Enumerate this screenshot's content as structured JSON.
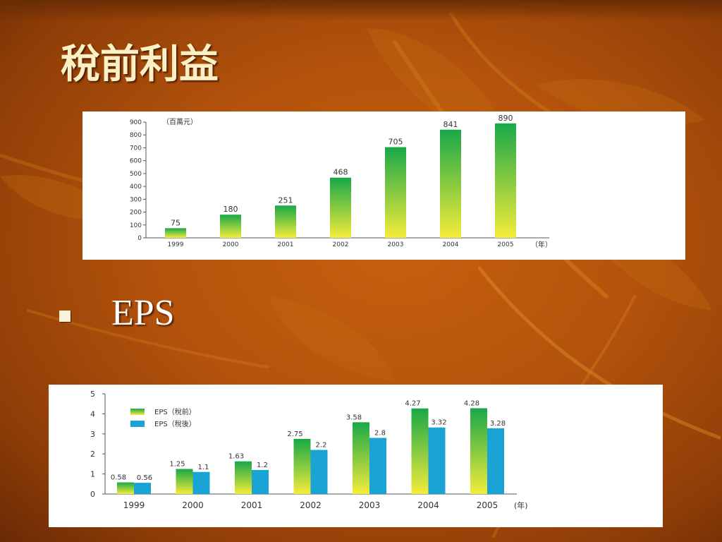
{
  "slide": {
    "title": "稅前利益",
    "bullet": "EPS"
  },
  "colors": {
    "green": "#18a848",
    "yellow": "#f5ec3a",
    "blue": "#1aa4d6"
  },
  "chart_data": [
    {
      "type": "bar",
      "unit_label": "（百萬元）",
      "x_unit_label": "（年）",
      "categories": [
        "1999",
        "2000",
        "2001",
        "2002",
        "2003",
        "2004",
        "2005"
      ],
      "values": [
        75,
        180,
        251,
        468,
        705,
        841,
        890
      ],
      "data_labels": [
        "75",
        "180",
        "251",
        "468",
        "705",
        "841",
        "890"
      ],
      "ylim": [
        0,
        900
      ],
      "yticks": [
        0,
        100,
        200,
        300,
        400,
        500,
        600,
        700,
        800,
        900
      ],
      "ytick_labels": [
        "0",
        "100",
        "200",
        "300",
        "400",
        "500",
        "600",
        "700",
        "800",
        "900"
      ],
      "grid": false
    },
    {
      "type": "bar",
      "x_unit_label": "(年)",
      "categories": [
        "1999",
        "2000",
        "2001",
        "2002",
        "2003",
        "2004",
        "2005"
      ],
      "series": [
        {
          "name": "EPS（稅前）",
          "values": [
            0.58,
            1.25,
            1.63,
            2.75,
            3.58,
            4.27,
            4.28
          ],
          "data_labels": [
            "0.58",
            "1.25",
            "1.63",
            "2.75",
            "3.58",
            "4.27",
            "4.28"
          ]
        },
        {
          "name": "EPS（稅後）",
          "values": [
            0.56,
            1.1,
            1.2,
            2.2,
            2.8,
            3.32,
            3.28
          ],
          "data_labels": [
            "0.56",
            "1.1",
            "1.2",
            "2.2",
            "2.8",
            "3.32",
            "3.28"
          ]
        }
      ],
      "ylim": [
        0,
        5
      ],
      "yticks": [
        0,
        1,
        2,
        3,
        4,
        5
      ],
      "ytick_labels": [
        "0",
        "1",
        "2",
        "3",
        "4",
        "5"
      ],
      "legend_position": "top-left",
      "grid": false
    }
  ]
}
